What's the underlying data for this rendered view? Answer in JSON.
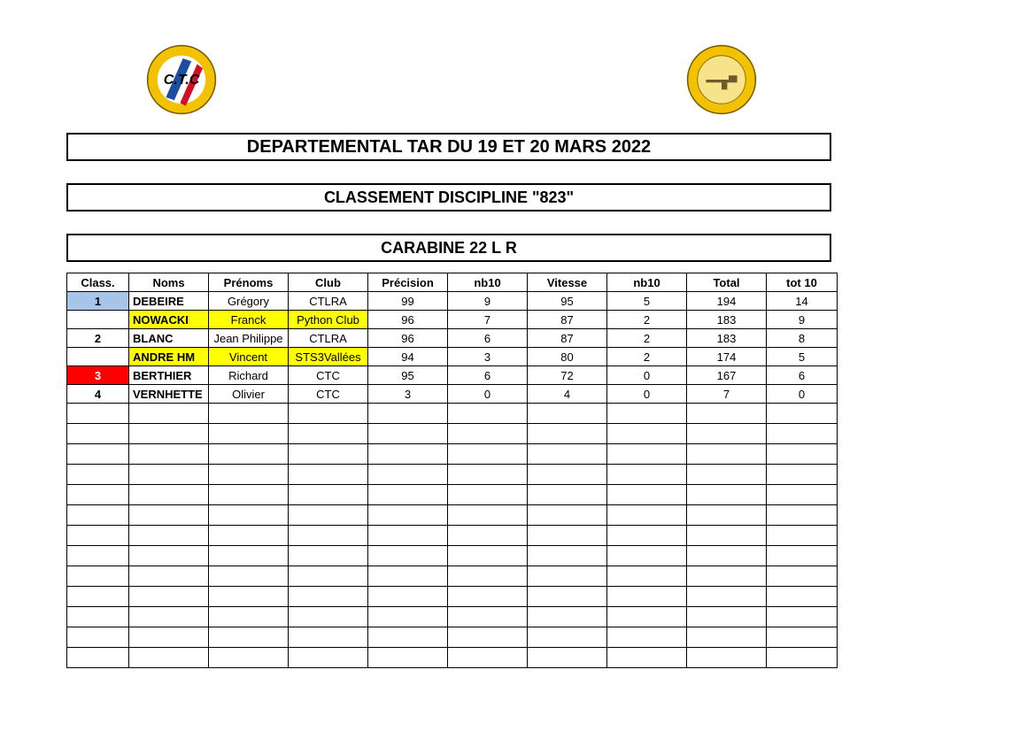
{
  "header": {
    "title": "DEPARTEMENTAL TAR DU 19 ET 20 MARS 2022",
    "subtitle": "CLASSEMENT DISCIPLINE \"823\"",
    "category": "CARABINE 22 L R"
  },
  "logo_left": {
    "outer_ring": "#f2c200",
    "stripe1": "#1d4fa1",
    "stripe2": "#ffffff",
    "stripe3": "#ce1126",
    "text": "C.T.C",
    "text_color": "#000000"
  },
  "logo_right": {
    "outer_ring": "#f2c200",
    "center": "#f6e38a",
    "icon": "#6e5a2b"
  },
  "colors": {
    "hl_blue": "#a6c5e8",
    "hl_yellow": "#ffff00",
    "hl_red": "#ff0000",
    "red_text": "#ffffff",
    "border": "#000000",
    "bg": "#ffffff"
  },
  "table": {
    "columns": [
      "Class.",
      "Noms",
      "Prénoms",
      "Club",
      "Précision",
      "nb10",
      "Vitesse",
      "nb10",
      "Total",
      "tot 10"
    ],
    "rows": [
      {
        "class": "1",
        "nom": "DEBEIRE",
        "prenom": "Grégory",
        "club": "CTLRA",
        "precision": "99",
        "nb10a": "9",
        "vitesse": "95",
        "nb10b": "5",
        "total": "194",
        "tot10": "14",
        "class_bg": "#a6c5e8",
        "class_fg": "#000000",
        "row_bg": null
      },
      {
        "class": "",
        "nom": "NOWACKI",
        "prenom": "Franck",
        "club": "Python Club",
        "precision": "96",
        "nb10a": "7",
        "vitesse": "87",
        "nb10b": "2",
        "total": "183",
        "tot10": "9",
        "class_bg": null,
        "class_fg": "#000000",
        "row_bg": "#ffff00",
        "row_bg_cells": [
          "nom",
          "prenom",
          "club"
        ]
      },
      {
        "class": "2",
        "nom": "BLANC",
        "prenom": "Jean Philippe",
        "club": "CTLRA",
        "precision": "96",
        "nb10a": "6",
        "vitesse": "87",
        "nb10b": "2",
        "total": "183",
        "tot10": "8",
        "class_bg": null,
        "class_fg": "#000000",
        "row_bg": null
      },
      {
        "class": "",
        "nom": "ANDRE   HM",
        "prenom": "Vincent",
        "club": "STS3Vallées",
        "precision": "94",
        "nb10a": "3",
        "vitesse": "80",
        "nb10b": "2",
        "total": "174",
        "tot10": "5",
        "class_bg": null,
        "class_fg": "#000000",
        "row_bg": "#ffff00",
        "row_bg_cells": [
          "nom",
          "prenom",
          "club"
        ]
      },
      {
        "class": "3",
        "nom": "BERTHIER",
        "prenom": "Richard",
        "club": "CTC",
        "precision": "95",
        "nb10a": "6",
        "vitesse": "72",
        "nb10b": "0",
        "total": "167",
        "tot10": "6",
        "class_bg": "#ff0000",
        "class_fg": "#ffffff",
        "row_bg": null
      },
      {
        "class": "4",
        "nom": "VERNHETTE",
        "prenom": "Olivier",
        "club": "CTC",
        "precision": "3",
        "nb10a": "0",
        "vitesse": "4",
        "nb10b": "0",
        "total": "7",
        "tot10": "0",
        "class_bg": null,
        "class_fg": "#000000",
        "row_bg": null
      }
    ],
    "empty_rows": 13
  }
}
